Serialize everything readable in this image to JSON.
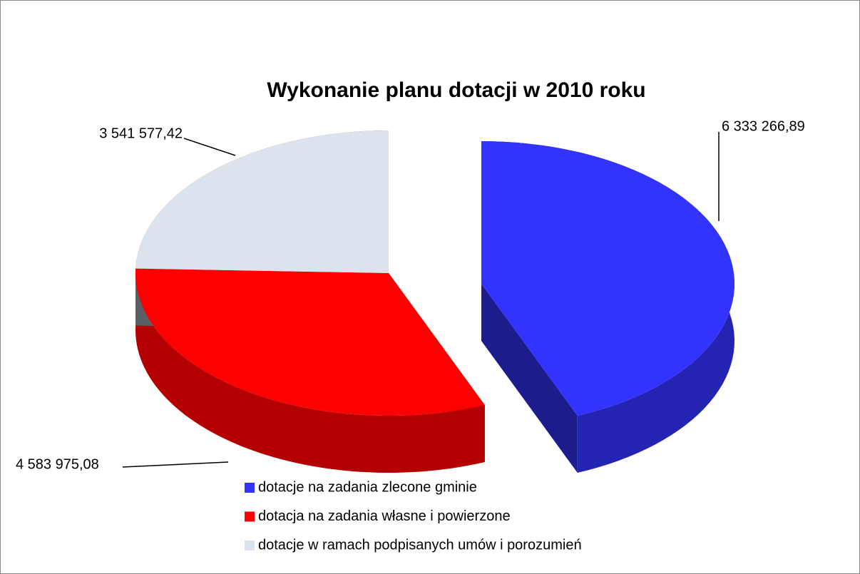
{
  "chart_data": {
    "type": "pie",
    "title": "Wykonanie planu  dotacji w 2010 roku",
    "categories": [
      "dotacje na zadania zlecone gminie",
      "dotacja na zadania własne i powierzone",
      "dotacje w ramach podpisanych umów i porozumień"
    ],
    "values": [
      6333266.89,
      4583975.08,
      3541577.42
    ],
    "value_labels": [
      "6 333 266,89",
      "4 583 975,08",
      "3 541 577,42"
    ],
    "colors": [
      "#3333ff",
      "#ff0000",
      "#dce3ed"
    ]
  }
}
